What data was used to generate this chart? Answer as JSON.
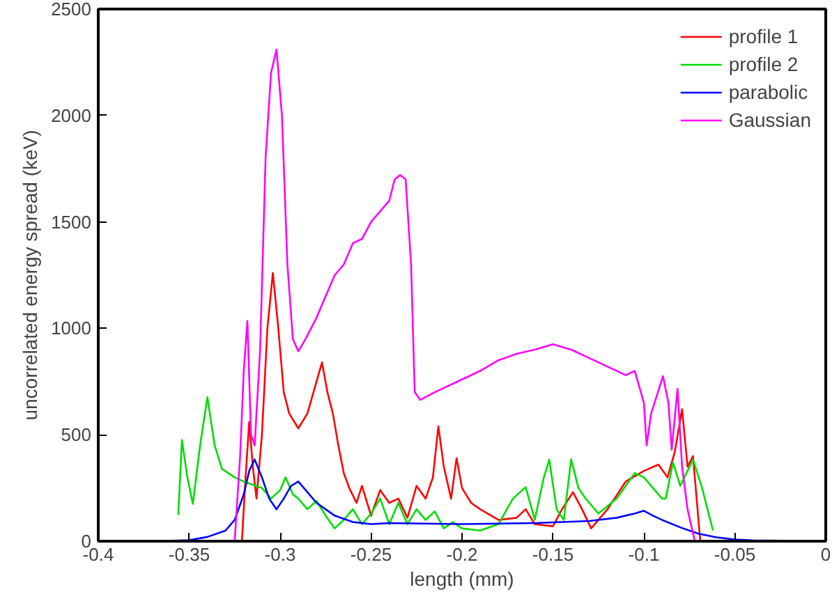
{
  "chart_data": {
    "type": "line",
    "xlabel": "length (mm)",
    "ylabel": "uncorrelated energy spread (keV)",
    "xlim": [
      -0.4,
      0
    ],
    "ylim": [
      0,
      2500
    ],
    "xticks": [
      -0.4,
      -0.35,
      -0.3,
      -0.25,
      -0.2,
      -0.15,
      -0.1,
      -0.05,
      0
    ],
    "yticks": [
      0,
      500,
      1000,
      1500,
      2000,
      2500
    ],
    "grid": false,
    "legend": "top right",
    "marker": "none",
    "line_style": "solid",
    "series": [
      {
        "name": "profile 1",
        "color": "#ff0000",
        "x": [
          -0.321,
          -0.319,
          -0.317,
          -0.315,
          -0.313,
          -0.31,
          -0.307,
          -0.304,
          -0.301,
          -0.298,
          -0.295,
          -0.29,
          -0.285,
          -0.28,
          -0.277,
          -0.274,
          -0.271,
          -0.268,
          -0.265,
          -0.262,
          -0.258,
          -0.255,
          -0.25,
          -0.245,
          -0.24,
          -0.235,
          -0.23,
          -0.225,
          -0.22,
          -0.216,
          -0.213,
          -0.21,
          -0.206,
          -0.203,
          -0.2,
          -0.195,
          -0.19,
          -0.18,
          -0.17,
          -0.165,
          -0.16,
          -0.15,
          -0.145,
          -0.139,
          -0.134,
          -0.129,
          -0.12,
          -0.11,
          -0.1,
          -0.092,
          -0.087,
          -0.083,
          -0.079,
          -0.076,
          -0.073,
          -0.071,
          -0.069
        ],
        "values": [
          0,
          300,
          560,
          350,
          200,
          500,
          1000,
          1260,
          1000,
          700,
          600,
          530,
          600,
          750,
          840,
          700,
          600,
          450,
          320,
          250,
          180,
          260,
          120,
          240,
          180,
          200,
          110,
          260,
          200,
          300,
          540,
          350,
          200,
          390,
          250,
          180,
          150,
          100,
          110,
          150,
          80,
          70,
          150,
          230,
          150,
          60,
          150,
          280,
          330,
          360,
          300,
          420,
          620,
          350,
          400,
          200,
          0
        ]
      },
      {
        "name": "profile 2",
        "color": "#00dd00",
        "x": [
          -0.356,
          -0.354,
          -0.351,
          -0.348,
          -0.344,
          -0.34,
          -0.336,
          -0.332,
          -0.325,
          -0.32,
          -0.31,
          -0.305,
          -0.3,
          -0.297,
          -0.293,
          -0.29,
          -0.285,
          -0.28,
          -0.275,
          -0.27,
          -0.265,
          -0.26,
          -0.255,
          -0.25,
          -0.245,
          -0.24,
          -0.235,
          -0.23,
          -0.225,
          -0.22,
          -0.215,
          -0.21,
          -0.205,
          -0.2,
          -0.19,
          -0.18,
          -0.172,
          -0.165,
          -0.16,
          -0.155,
          -0.152,
          -0.148,
          -0.144,
          -0.14,
          -0.136,
          -0.132,
          -0.125,
          -0.115,
          -0.105,
          -0.1,
          -0.095,
          -0.09,
          -0.088,
          -0.084,
          -0.08,
          -0.076,
          -0.073,
          -0.068,
          -0.065,
          -0.062
        ],
        "values": [
          124,
          475,
          300,
          175,
          450,
          677,
          450,
          340,
          300,
          280,
          250,
          200,
          240,
          300,
          220,
          200,
          150,
          190,
          120,
          60,
          100,
          150,
          80,
          130,
          200,
          80,
          180,
          80,
          150,
          100,
          140,
          60,
          90,
          60,
          50,
          80,
          200,
          254,
          100,
          300,
          383,
          150,
          100,
          385,
          250,
          200,
          130,
          200,
          320,
          300,
          250,
          200,
          200,
          370,
          260,
          330,
          383,
          250,
          150,
          50
        ]
      },
      {
        "name": "parabolic",
        "color": "#0000ff",
        "x": [
          -0.37,
          -0.35,
          -0.34,
          -0.33,
          -0.325,
          -0.32,
          -0.317,
          -0.314,
          -0.31,
          -0.306,
          -0.302,
          -0.298,
          -0.294,
          -0.29,
          -0.285,
          -0.28,
          -0.275,
          -0.27,
          -0.26,
          -0.25,
          -0.24,
          -0.2,
          -0.16,
          -0.13,
          -0.115,
          -0.105,
          -0.1,
          -0.095,
          -0.09,
          -0.08,
          -0.07,
          -0.06,
          -0.05,
          -0.04,
          0
        ],
        "values": [
          0,
          5,
          20,
          50,
          100,
          220,
          330,
          384,
          300,
          200,
          150,
          200,
          260,
          280,
          230,
          180,
          150,
          120,
          90,
          80,
          85,
          80,
          85,
          95,
          110,
          130,
          143,
          120,
          100,
          65,
          35,
          18,
          8,
          4,
          0
        ]
      },
      {
        "name": "Gaussian",
        "color": "#ff00ff",
        "x": [
          -0.325,
          -0.322,
          -0.32,
          -0.318,
          -0.316,
          -0.314,
          -0.311,
          -0.308,
          -0.305,
          -0.302,
          -0.299,
          -0.296,
          -0.293,
          -0.29,
          -0.286,
          -0.28,
          -0.275,
          -0.27,
          -0.265,
          -0.26,
          -0.255,
          -0.25,
          -0.245,
          -0.24,
          -0.237,
          -0.234,
          -0.231,
          -0.228,
          -0.226,
          -0.223,
          -0.215,
          -0.2,
          -0.19,
          -0.18,
          -0.17,
          -0.16,
          -0.15,
          -0.14,
          -0.13,
          -0.12,
          -0.11,
          -0.105,
          -0.1,
          -0.0985,
          -0.096,
          -0.0895,
          -0.0865,
          -0.0847,
          -0.0815,
          -0.079,
          -0.076,
          -0.072
        ],
        "values": [
          0,
          400,
          800,
          1035,
          500,
          450,
          900,
          1800,
          2200,
          2310,
          2000,
          1300,
          950,
          892,
          950,
          1050,
          1150,
          1250,
          1300,
          1400,
          1420,
          1500,
          1550,
          1600,
          1700,
          1720,
          1700,
          1300,
          700,
          664,
          700,
          760,
          800,
          850,
          880,
          900,
          925,
          900,
          860,
          820,
          780,
          800,
          650,
          450,
          600,
          775,
          650,
          430,
          716,
          350,
          150,
          0
        ]
      }
    ]
  }
}
